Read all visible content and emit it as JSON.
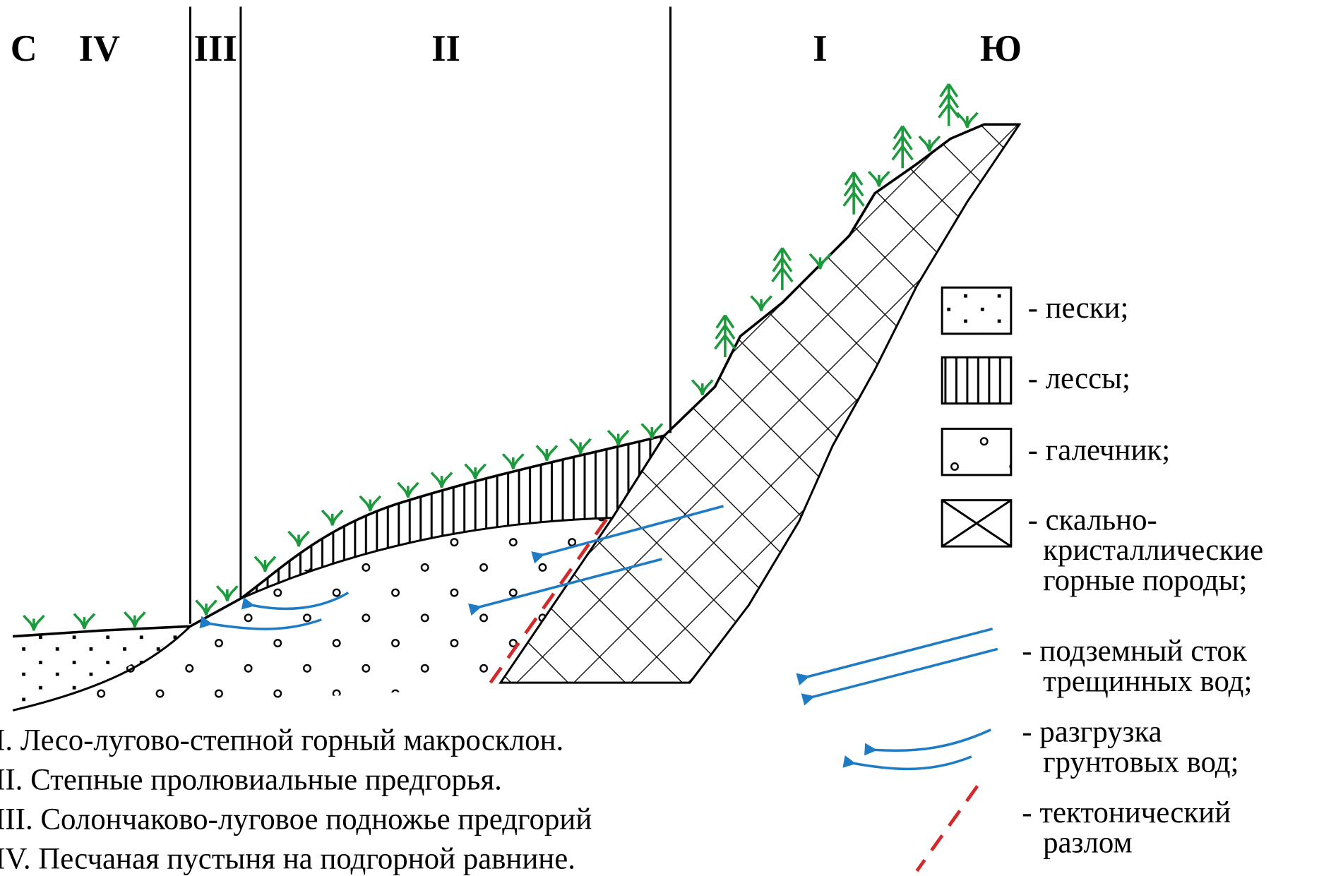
{
  "header": {
    "left": "С",
    "zones": [
      "IV",
      "III",
      "II",
      "I"
    ],
    "right": "Ю"
  },
  "legend": [
    {
      "lines": [
        "- пески;"
      ]
    },
    {
      "lines": [
        "- лессы;"
      ]
    },
    {
      "lines": [
        "- галечник;"
      ]
    },
    {
      "lines": [
        "- скально-",
        "кристаллические",
        "горные породы;"
      ]
    },
    {
      "lines": [
        "- подземный сток",
        "трещинных вод;"
      ]
    },
    {
      "lines": [
        "- разгрузка",
        "грунтовых вод;"
      ]
    },
    {
      "lines": [
        "- тектонический",
        "разлом"
      ]
    }
  ],
  "notes": [
    "I. Лесо-лугово-степной горный макросклон.",
    "II. Степные пролювиальные предгорья.",
    "III. Солончаково-луговое подножье  предгорий",
    "IV. Песчаная пустыня на подгорной равнине."
  ]
}
